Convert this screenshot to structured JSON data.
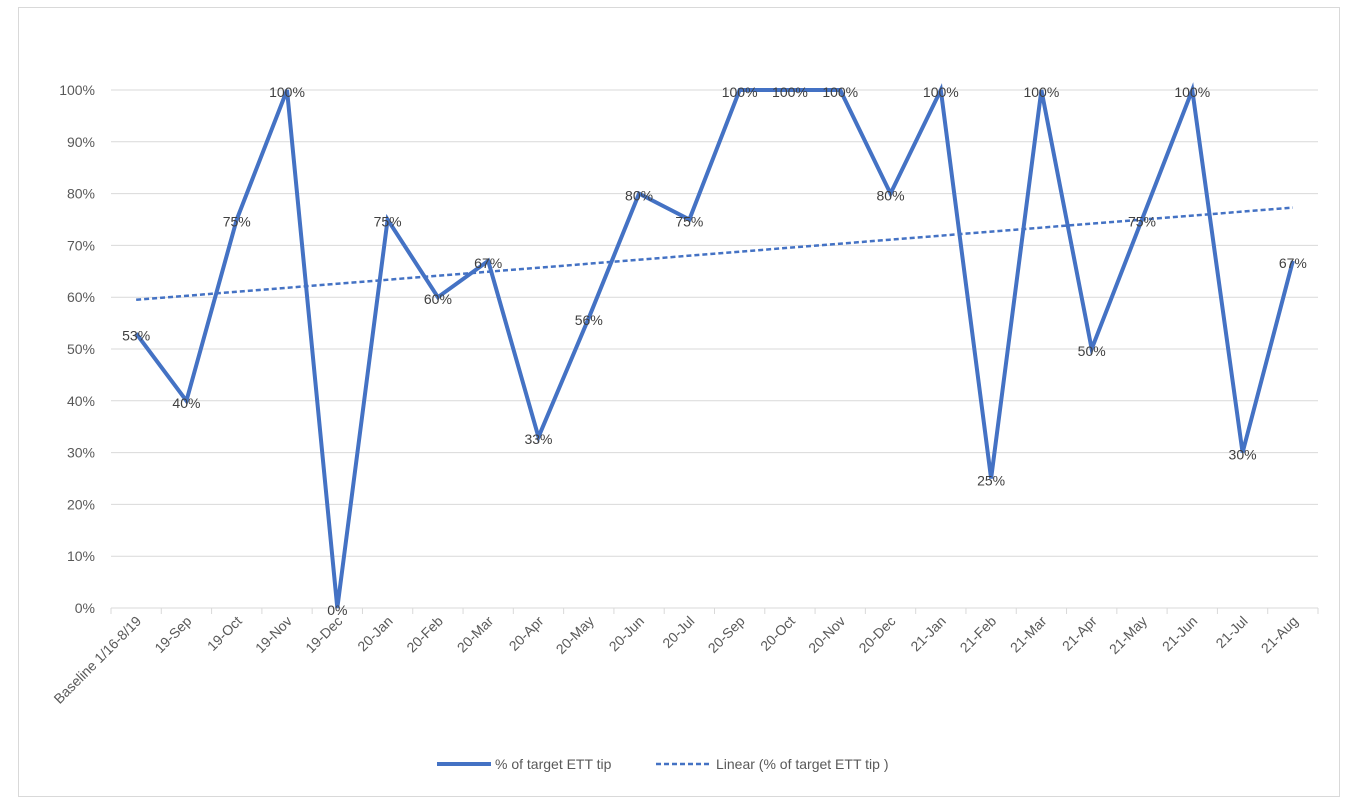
{
  "colors": {
    "series": "#4472C4",
    "grid": "#d9d9d9",
    "axis_text": "#595959",
    "label_text": "#404040"
  },
  "chart_data": {
    "type": "line",
    "title": "",
    "xlabel": "",
    "ylabel": "",
    "categories": [
      "Baseline 1/16-8/19",
      "19-Sep",
      "19-Oct",
      "19-Nov",
      "19-Dec",
      "20-Jan",
      "20-Feb",
      "20-Mar",
      "20-Apr",
      "20-May",
      "20-Jun",
      "20-Jul",
      "20-Sep",
      "20-Oct",
      "20-Nov",
      "20-Dec",
      "21-Jan",
      "21-Feb",
      "21-Mar",
      "21-Apr",
      "21-May",
      "21-Jun",
      "21-Jul",
      "21-Aug"
    ],
    "series": [
      {
        "name": "% of target ETT tip",
        "values": [
          53,
          40,
          75,
          100,
          0,
          75,
          60,
          67,
          33,
          56,
          80,
          75,
          100,
          100,
          100,
          80,
          100,
          25,
          100,
          50,
          75,
          100,
          30,
          67
        ],
        "labels": [
          "53%",
          "40%",
          "75%",
          "100%",
          "0%",
          "75%",
          "60%",
          "67%",
          "33%",
          "56%",
          "80%",
          "75%",
          "100%",
          "100%",
          "100%",
          "80%",
          "100%",
          "25%",
          "100%",
          "50%",
          "75%",
          "100%",
          "30%",
          "67%"
        ],
        "style": "solid"
      },
      {
        "name": "Linear (% of target ETT tip )",
        "trendline": "linear",
        "start": 59.5,
        "end": 77.3,
        "style": "dashed"
      }
    ],
    "yticks": [
      "0%",
      "10%",
      "20%",
      "30%",
      "40%",
      "50%",
      "60%",
      "70%",
      "80%",
      "90%",
      "100%"
    ],
    "ylim": [
      0,
      100
    ],
    "grid": true,
    "legend_position": "bottom"
  }
}
